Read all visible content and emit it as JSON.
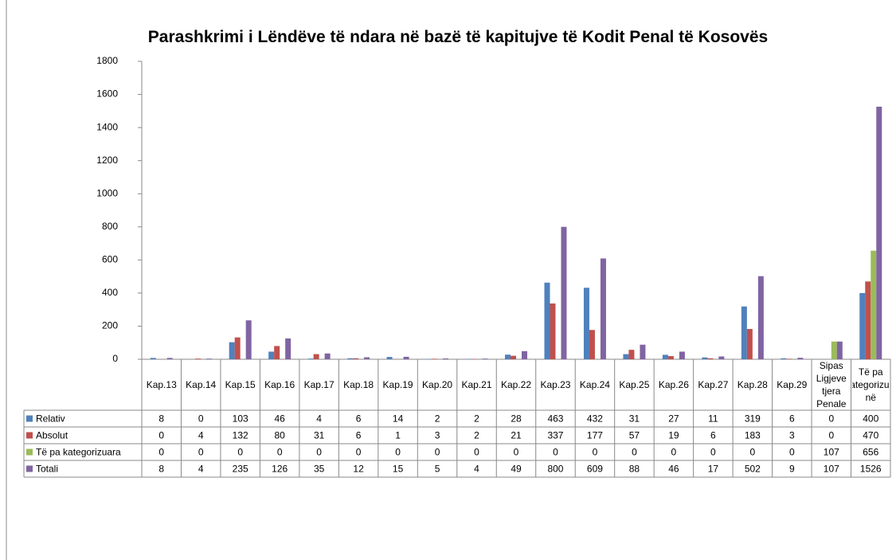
{
  "chart_data": {
    "type": "bar",
    "title": "Parashkrimi i Lëndëve të ndara në bazë të kapitujve të Kodit Penal të Kosovës",
    "categories": [
      "Kap.13",
      "Kap.14",
      "Kap.15",
      "Kap.16",
      "Kap.17",
      "Kap.18",
      "Kap.19",
      "Kap.20",
      "Kap.21",
      "Kap.22",
      "Kap.23",
      "Kap.24",
      "Kap.25",
      "Kap.26",
      "Kap.27",
      "Kap.28",
      "Kap.29",
      "Sipas Ligjeve tjera Penale",
      "Të pa Kategorizuar në"
    ],
    "series": [
      {
        "name": "Relativ",
        "color": "#4f81bd",
        "values": [
          8,
          0,
          103,
          46,
          4,
          6,
          14,
          2,
          2,
          28,
          463,
          432,
          31,
          27,
          11,
          319,
          6,
          0,
          400
        ]
      },
      {
        "name": "Absolut",
        "color": "#c0504d",
        "values": [
          0,
          4,
          132,
          80,
          31,
          6,
          1,
          3,
          2,
          21,
          337,
          177,
          57,
          19,
          6,
          183,
          3,
          0,
          470
        ]
      },
      {
        "name": "Të pa kategorizuara",
        "color": "#9bbb59",
        "values": [
          0,
          0,
          0,
          0,
          0,
          0,
          0,
          0,
          0,
          0,
          0,
          0,
          0,
          0,
          0,
          0,
          0,
          107,
          656
        ]
      },
      {
        "name": "Totali",
        "color": "#8064a2",
        "values": [
          8,
          4,
          235,
          126,
          35,
          12,
          15,
          5,
          4,
          49,
          800,
          609,
          88,
          46,
          17,
          502,
          9,
          107,
          1526
        ]
      }
    ],
    "ylim": [
      0,
      1800
    ],
    "yticks": [
      0,
      200,
      400,
      600,
      800,
      1000,
      1200,
      1400,
      1600,
      1800
    ]
  }
}
